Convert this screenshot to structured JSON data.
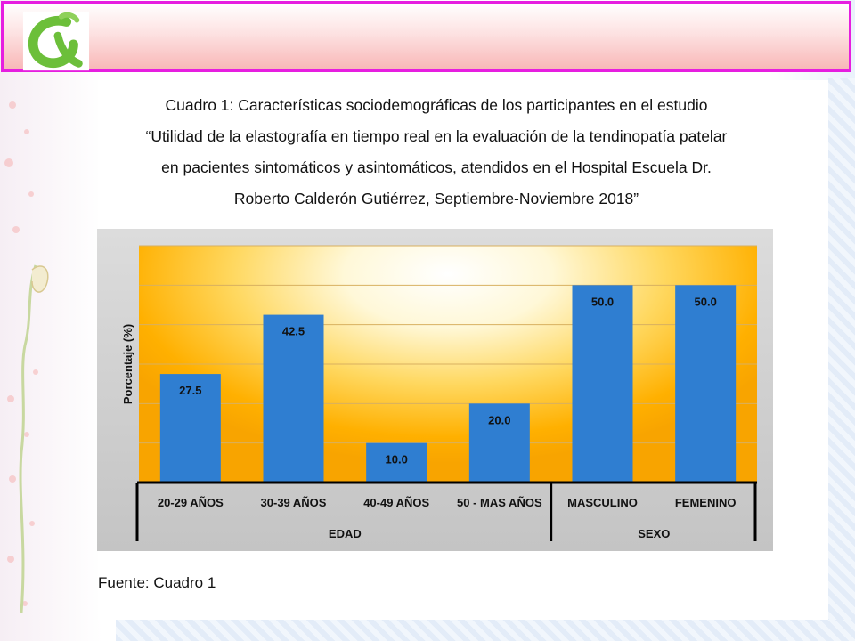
{
  "title_lines": [
    "Cuadro 1: Características sociodemográficas de los participantes en el estudio",
    "“Utilidad de la elastografía en tiempo real en la evaluación de la tendinopatía patelar",
    "en pacientes sintomáticos y asintomáticos, atendidos en el Hospital Escuela Dr.",
    "Roberto Calderón Gutiérrez, Septiembre-Noviembre 2018”"
  ],
  "source": "Fuente: Cuadro 1",
  "colors": {
    "bar": "#2f7ed1",
    "frame": "#e61ee0"
  },
  "icons": [
    "logo-icon"
  ],
  "chart_data": {
    "type": "bar",
    "ylabel": "Porcentaje (%)",
    "ylim": [
      0,
      60
    ],
    "grid": true,
    "categories": [
      "20-29 AÑOS",
      "30-39 AÑOS",
      "40-49 AÑOS",
      "50 - MAS AÑOS",
      "MASCULINO",
      "FEMENINO"
    ],
    "groups": [
      {
        "label": "EDAD",
        "count": 4
      },
      {
        "label": "SEXO",
        "count": 2
      }
    ],
    "values": [
      27.5,
      42.5,
      10.0,
      20.0,
      50.0,
      50.0
    ],
    "data_labels": [
      "27.5",
      "42.5",
      "10.0",
      "20.0",
      "50.0",
      "50.0"
    ]
  }
}
